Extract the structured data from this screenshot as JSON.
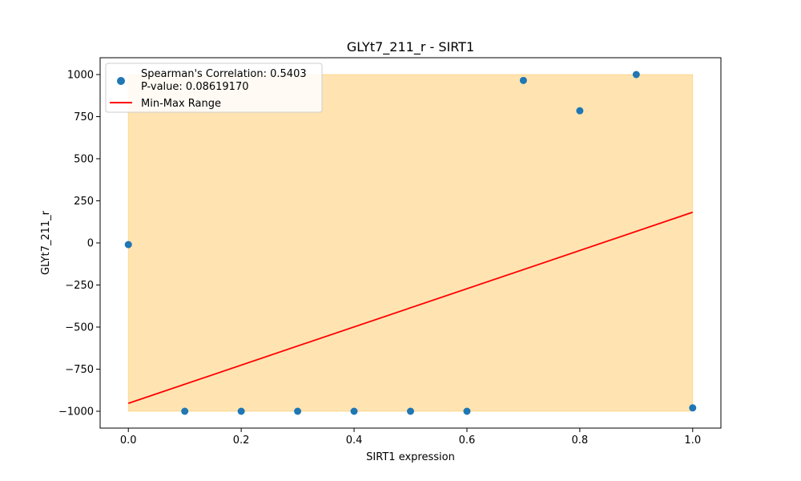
{
  "chart_data": {
    "type": "scatter",
    "title": "GLYt7_211_r - SIRT1",
    "xlabel": "SIRT1 expression",
    "ylabel": "GLYt7_211_r",
    "xlim": [
      -0.05,
      1.05
    ],
    "ylim": [
      -1100,
      1100
    ],
    "x_ticks": [
      0.0,
      0.2,
      0.4,
      0.6,
      0.8,
      1.0
    ],
    "x_tick_labels": [
      "0.0",
      "0.2",
      "0.4",
      "0.6",
      "0.8",
      "1.0"
    ],
    "y_ticks": [
      -1000,
      -750,
      -500,
      -250,
      0,
      250,
      500,
      750,
      1000
    ],
    "y_tick_labels": [
      "−1000",
      "−750",
      "−500",
      "−250",
      "0",
      "250",
      "500",
      "750",
      "1000"
    ],
    "grid": false,
    "legend_position": "top-left",
    "series": [
      {
        "kind": "scatter",
        "name": "Spearman's Correlation: 0.5403\nP-value: 0.08619170",
        "legend_lines": [
          "Spearman's Correlation: 0.5403",
          "P-value: 0.08619170"
        ],
        "color": "#1f77b4",
        "x": [
          0.0,
          0.1,
          0.2,
          0.3,
          0.4,
          0.5,
          0.6,
          0.7,
          0.8,
          0.9,
          1.0
        ],
        "y": [
          -10,
          -1000,
          -1000,
          -1000,
          -1000,
          -1000,
          -1000,
          965,
          785,
          1000,
          -980
        ]
      },
      {
        "kind": "line",
        "name": "Min-Max Range",
        "color": "#ff0000",
        "x": [
          0.0,
          1.0
        ],
        "y": [
          -953,
          182
        ]
      }
    ],
    "shaded_region": {
      "color": "#ffa500",
      "opacity": 0.3,
      "x": [
        0.0,
        1.0
      ],
      "y": [
        -1000,
        1000
      ]
    }
  }
}
